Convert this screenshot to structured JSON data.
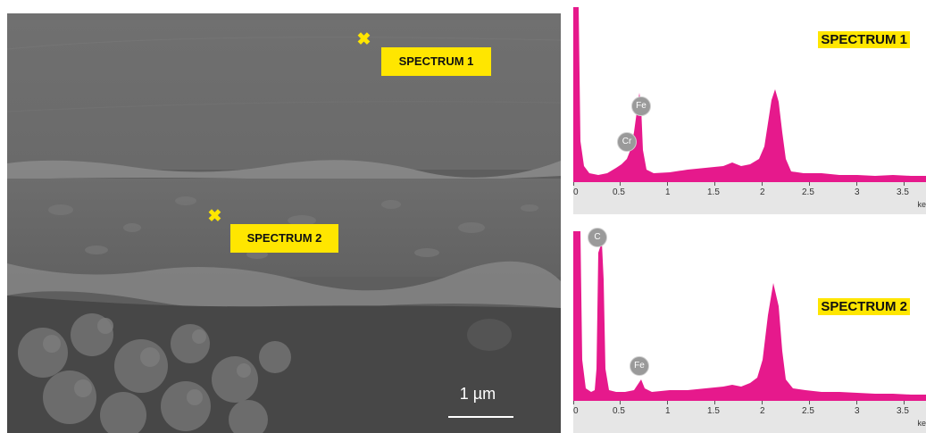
{
  "micrograph": {
    "labels": {
      "spectrum1": "SPECTRUM 1",
      "spectrum2": "SPECTRUM 2"
    },
    "marker_glyph": "✖",
    "scale_bar_text": "1 µm"
  },
  "spectra": [
    {
      "title": "SPECTRUM 1",
      "peak_labels": [
        "Fe",
        "Cr"
      ],
      "x_ticks": [
        "0",
        "0.5",
        "1",
        "1.5",
        "2",
        "2.5",
        "3",
        "3.5"
      ],
      "x_unit": "ke",
      "color": "#e6198c"
    },
    {
      "title": "SPECTRUM 2",
      "peak_labels": [
        "C",
        "Fe"
      ],
      "x_ticks": [
        "0",
        "0.5",
        "1",
        "1.5",
        "2",
        "2.5",
        "3",
        "3.5"
      ],
      "x_unit": "ke",
      "color": "#e6198c"
    }
  ],
  "colors": {
    "label_background": "#ffe600",
    "spectrum_fill": "#e6198c"
  }
}
